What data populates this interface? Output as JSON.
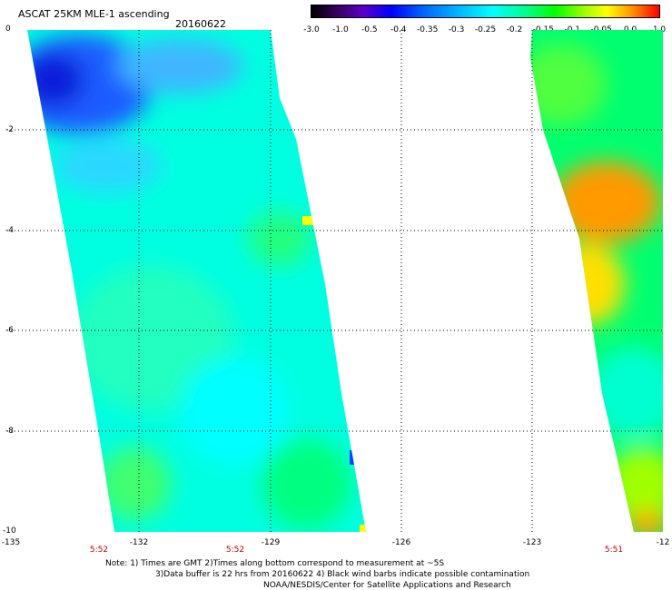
{
  "title": "ASCAT 25KM MLE-1 ascending",
  "date": "20160622",
  "colorbar": {
    "ticks": [
      "-3.0",
      "-1.0",
      "-0.5",
      "-0.4",
      "-0.35",
      "-0.3",
      "-0.25",
      "-0.2",
      "-0.15",
      "-0.1",
      "-0.05",
      "0.0",
      "1.0"
    ]
  },
  "latitude_labels": [
    "0",
    "-2",
    "-4",
    "-6",
    "-8",
    "-10"
  ],
  "longitude_labels": [
    "-135",
    "-132",
    "-129",
    "-126",
    "-123",
    "-12"
  ],
  "time_labels": [
    "5:52",
    "5:52",
    "5:51"
  ],
  "notes": {
    "line1": "Note: 1) Times are GMT 2)Times along bottom correspond to measurement at ~5S",
    "line2": "3)Data buffer is 22 hrs from 20160622 4) Black wind barbs indicate possible contamination",
    "line3": "NOAA/NESDIS/Center for Satellite Applications and Research"
  },
  "colors": {
    "deep_blue": "#0a1fd8",
    "blue": "#1e5cff",
    "cyan": "#00ffff",
    "aqua": "#00ffc8",
    "green": "#00ff5a",
    "lime": "#8cff00",
    "yellow": "#ffff00",
    "orange": "#ff9a00"
  }
}
